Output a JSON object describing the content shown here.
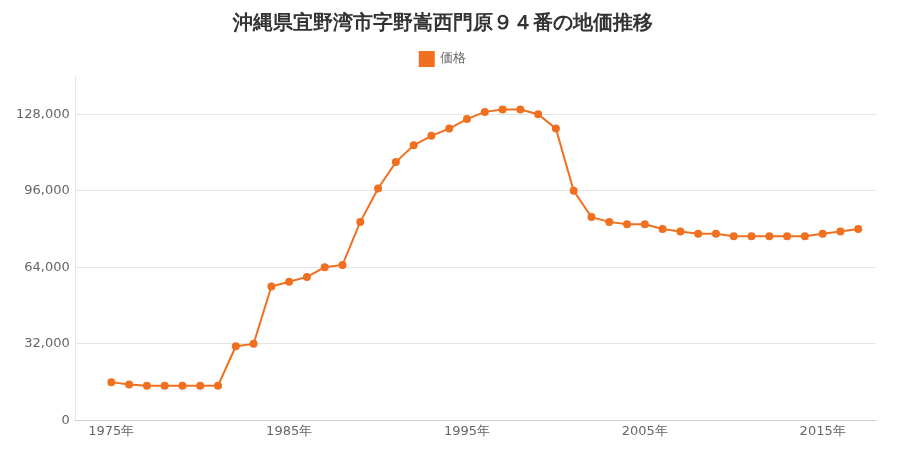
{
  "chart_data": {
    "type": "line",
    "title": "沖縄県宜野湾市字野嵩西門原９４番の地価推移",
    "x": [
      1975,
      1976,
      1977,
      1978,
      1979,
      1980,
      1981,
      1982,
      1983,
      1984,
      1985,
      1986,
      1987,
      1988,
      1989,
      1990,
      1991,
      1992,
      1993,
      1994,
      1995,
      1996,
      1997,
      1998,
      1999,
      2000,
      2001,
      2002,
      2003,
      2004,
      2005,
      2006,
      2007,
      2008,
      2009,
      2010,
      2011,
      2012,
      2013,
      2014,
      2015,
      2016,
      2017
    ],
    "series": [
      {
        "name": "価格",
        "color": "#f07020",
        "marker": "circle",
        "values": [
          16000,
          15000,
          14500,
          14500,
          14500,
          14500,
          14500,
          31000,
          32000,
          56000,
          58000,
          60000,
          64000,
          65000,
          83000,
          97000,
          108000,
          115000,
          119000,
          122000,
          126000,
          129000,
          130000,
          130000,
          128000,
          122000,
          96000,
          85000,
          83000,
          82000,
          82000,
          80000,
          79000,
          78000,
          78000,
          77000,
          77000,
          77000,
          77000,
          77000,
          78000,
          79000,
          80000
        ]
      }
    ],
    "xlim": [
      1973,
      2018
    ],
    "xticks": [
      {
        "value": 1975,
        "label": "1975年"
      },
      {
        "value": 1985,
        "label": "1985年"
      },
      {
        "value": 1995,
        "label": "1995年"
      },
      {
        "value": 2005,
        "label": "2005年"
      },
      {
        "value": 2015,
        "label": "2015年"
      }
    ],
    "ylim": [
      0,
      144000
    ],
    "yticks": [
      0,
      {
        "value": 32000,
        "label": "32,000"
      },
      {
        "value": 64000,
        "label": "64,000"
      },
      {
        "value": 96000,
        "label": "96,000"
      },
      {
        "value": 128000,
        "label": "128,000"
      }
    ],
    "grid": "y",
    "legend": "top"
  }
}
